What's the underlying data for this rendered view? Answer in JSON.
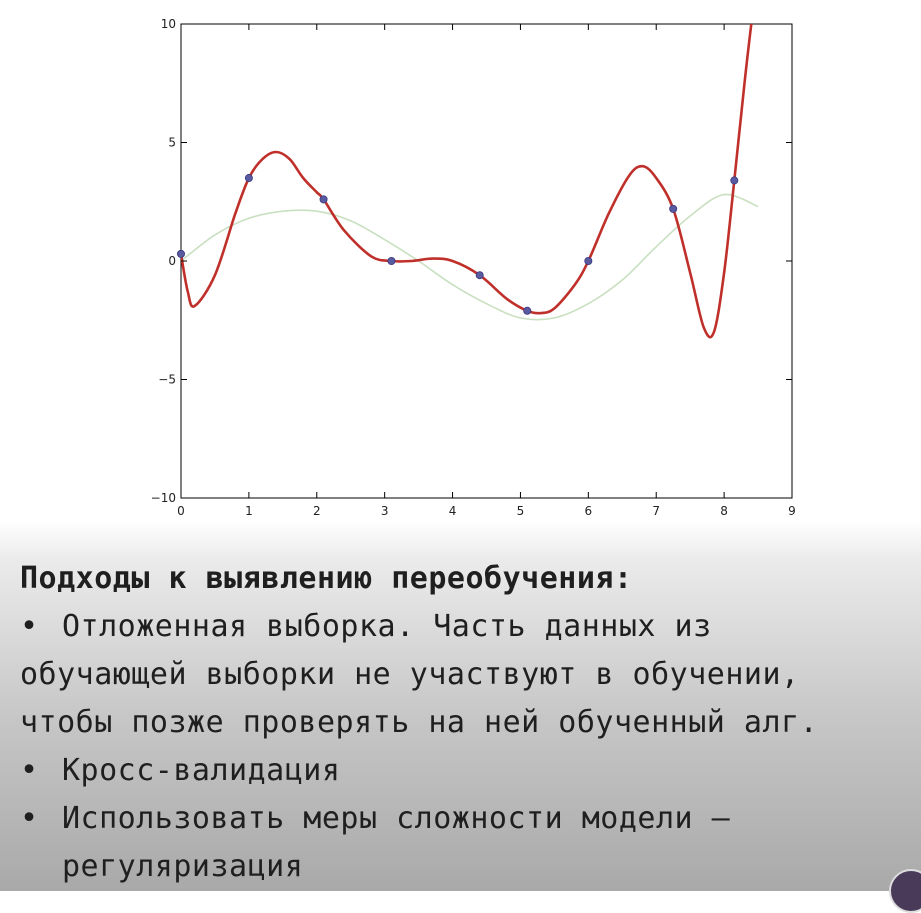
{
  "chart_data": {
    "type": "line",
    "xlim": [
      0,
      9
    ],
    "ylim": [
      -10,
      10
    ],
    "x_ticks": [
      "0",
      "1",
      "2",
      "3",
      "4",
      "5",
      "6",
      "7",
      "8",
      "9"
    ],
    "y_ticks": [
      "10",
      "5",
      "0",
      "−5",
      "−10"
    ],
    "grid": false,
    "series": [
      {
        "role": "true-function",
        "color": "#c8e0c0",
        "x": [
          0,
          0.5,
          1,
          1.5,
          2,
          2.5,
          3,
          3.5,
          4,
          4.5,
          5,
          5.5,
          6,
          6.5,
          7,
          7.5,
          8,
          8.5
        ],
        "y": [
          0,
          1.1,
          1.8,
          2.1,
          2.1,
          1.7,
          0.9,
          0,
          -1.0,
          -1.8,
          -2.4,
          -2.4,
          -1.8,
          -0.8,
          0.6,
          1.9,
          2.8,
          2.3
        ]
      },
      {
        "role": "overfit-polynomial",
        "color": "#c0302a",
        "x": [
          0,
          0.1,
          0.2,
          0.5,
          0.8,
          1,
          1.2,
          1.4,
          1.6,
          1.8,
          2,
          2.1,
          2.4,
          2.8,
          3.1,
          3.4,
          3.7,
          4,
          4.4,
          4.8,
          5.1,
          5.3,
          5.5,
          5.8,
          6,
          6.3,
          6.6,
          6.8,
          7,
          7.25,
          7.5,
          7.7,
          7.85,
          8,
          8.15,
          8.3,
          8.4
        ],
        "y": [
          0.3,
          -1.3,
          -1.9,
          -0.6,
          2.0,
          3.5,
          4.3,
          4.6,
          4.3,
          3.5,
          2.9,
          2.6,
          1.3,
          0.2,
          0,
          0,
          0.1,
          0,
          -0.6,
          -1.6,
          -2.1,
          -2.2,
          -2.0,
          -1.0,
          0,
          2.0,
          3.6,
          4.0,
          3.5,
          2.2,
          -0.5,
          -2.8,
          -3.0,
          -0.5,
          3.4,
          7.5,
          10
        ]
      },
      {
        "role": "samples",
        "color": "#5a5aa0",
        "x": [
          0,
          1,
          2.1,
          3.1,
          4.4,
          5.1,
          6,
          7.25,
          8.15
        ],
        "y": [
          0.3,
          3.5,
          2.6,
          0,
          -0.6,
          -2.1,
          0,
          2.2,
          3.4
        ]
      }
    ]
  },
  "text": {
    "heading": "Подходы к выявлению переобучения:",
    "bullet": "•",
    "b1_l1": "Отложенная выборка. Часть данных из",
    "b1_l2": "обучающей выборки не участвуют в обучении,",
    "b1_l3": "чтобы позже проверять на ней обученный алг.",
    "b2": "Кросс-валидация",
    "b3_l1": "Использовать меры сложности модели –",
    "b3_l2": "регуляризация"
  }
}
